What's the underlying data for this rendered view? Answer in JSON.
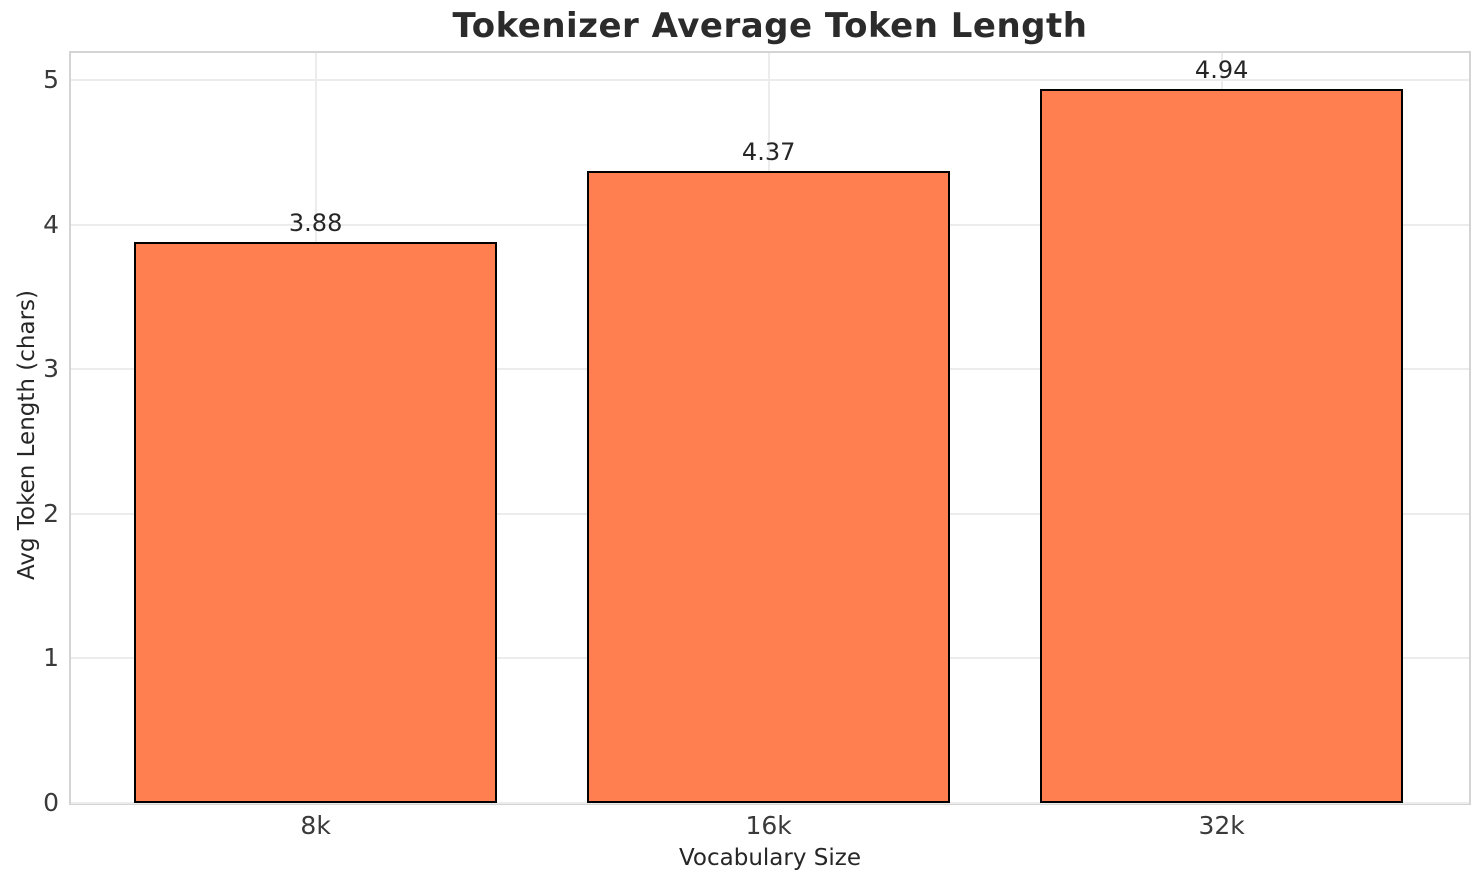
{
  "chart_data": {
    "type": "bar",
    "title": "Tokenizer Average Token Length",
    "xlabel": "Vocabulary Size",
    "ylabel": "Avg Token Length (chars)",
    "categories": [
      "8k",
      "16k",
      "32k"
    ],
    "values": [
      3.88,
      4.37,
      4.94
    ],
    "bar_value_labels": [
      "3.88",
      "4.37",
      "4.94"
    ],
    "yticks": [
      "0",
      "1",
      "2",
      "3",
      "4",
      "5"
    ],
    "ytick_values": [
      0,
      1,
      2,
      3,
      4,
      5
    ],
    "ylim": [
      0,
      5.19
    ],
    "xlim": [
      -0.54,
      2.546
    ],
    "bar_width_fraction": 0.8,
    "grid": true,
    "legend_position": "none",
    "colors": {
      "bar_fill": "#FF7F50",
      "bar_edge": "#000000",
      "grid": "#ececec",
      "spine": "#d4d4d4",
      "text": "#262626",
      "background": "#ffffff"
    }
  }
}
